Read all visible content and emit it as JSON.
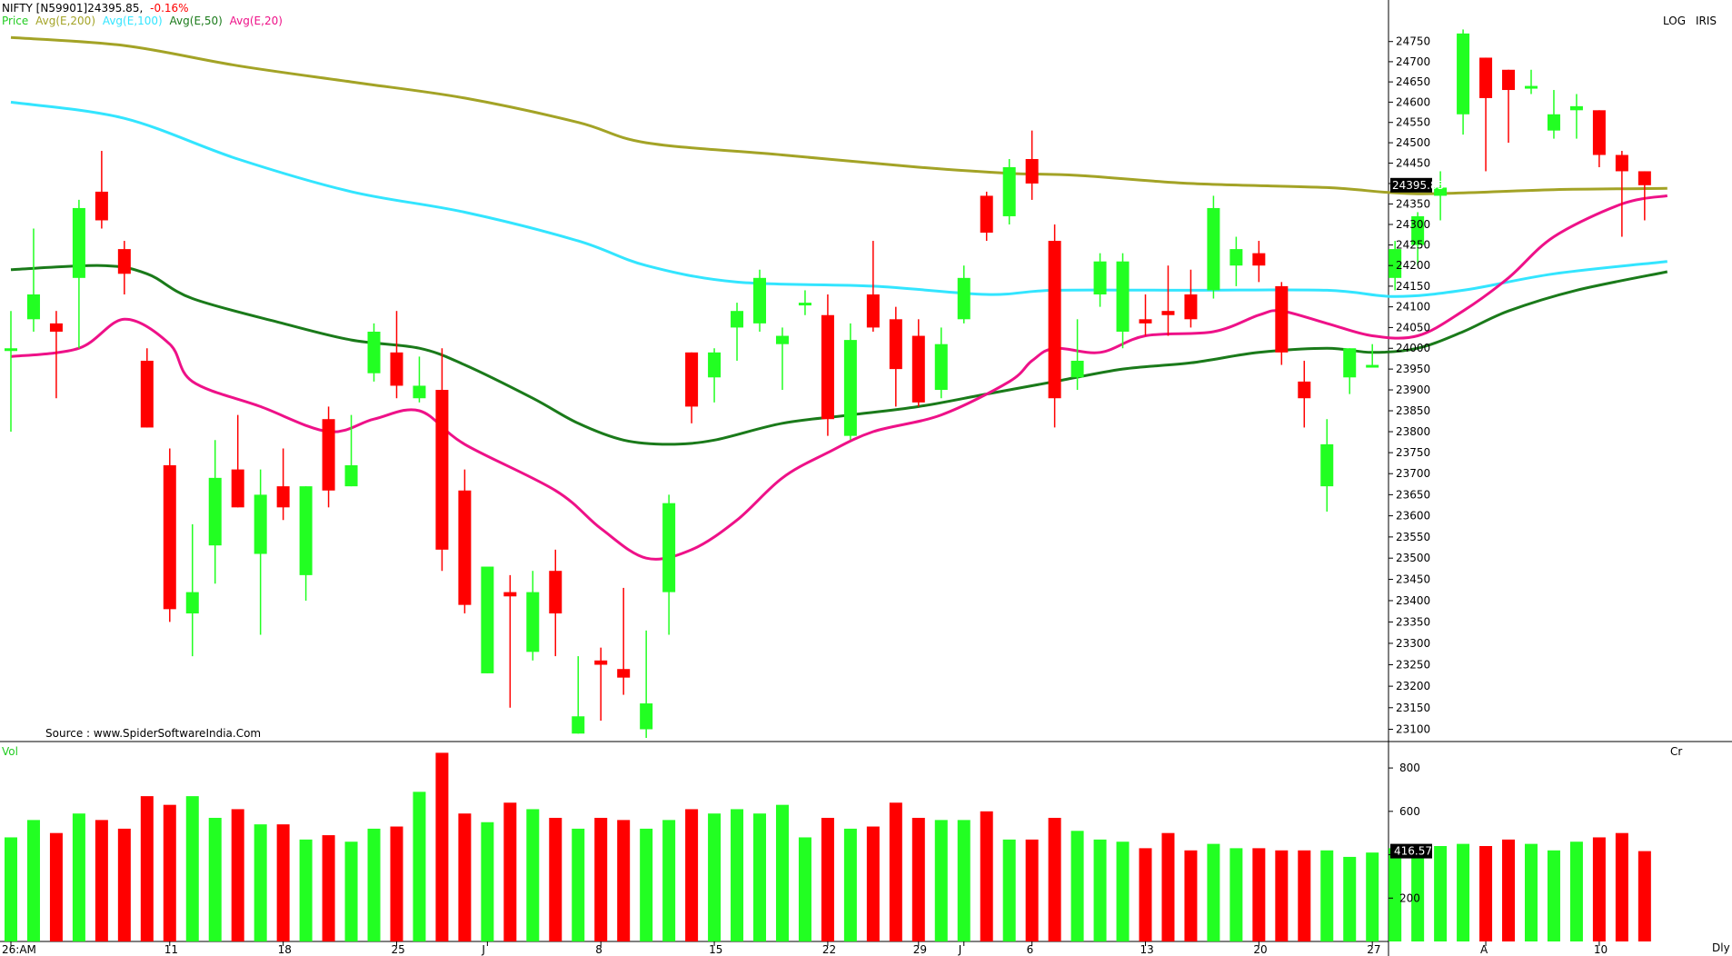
{
  "header": {
    "symbol": "NIFTY [N59901]24395.85,",
    "change": "-0.16%",
    "legend": [
      {
        "label": "Price",
        "color": "#22cc22"
      },
      {
        "label": "Avg(E,200)",
        "color": "#a3a326"
      },
      {
        "label": "Avg(E,100)",
        "color": "#33e5ff"
      },
      {
        "label": "Avg(E,50)",
        "color": "#1a7a1a"
      },
      {
        "label": "Avg(E,20)",
        "color": "#ee1188"
      }
    ],
    "scale_mode": "LOG",
    "scale_name": "IRIS",
    "source": "Source : www.SpiderSoftwareIndia.Com"
  },
  "volume_panel": {
    "label": "Vol",
    "unit": "Cr",
    "last_value": "416.57"
  },
  "price_panel": {
    "last_value": "24395.85"
  },
  "colors": {
    "up": "#22ff22",
    "down": "#ff0000",
    "up_vol": "#22ff22",
    "down_vol": "#ff0000"
  },
  "x_labels": [
    {
      "i": 0,
      "text": "26:AM"
    },
    {
      "i": 7,
      "text": "11"
    },
    {
      "i": 12,
      "text": "18"
    },
    {
      "i": 17,
      "text": "25"
    },
    {
      "i": 21,
      "text": "J"
    },
    {
      "i": 26,
      "text": "8"
    },
    {
      "i": 31,
      "text": "15"
    },
    {
      "i": 36,
      "text": "22"
    },
    {
      "i": 40,
      "text": "29"
    },
    {
      "i": 42,
      "text": "J"
    },
    {
      "i": 45,
      "text": "6"
    },
    {
      "i": 50,
      "text": "13"
    },
    {
      "i": 55,
      "text": "20"
    },
    {
      "i": 60,
      "text": "27"
    },
    {
      "i": 65,
      "text": "A"
    },
    {
      "i": 70,
      "text": "10"
    }
  ],
  "x_corner_label": "Dly",
  "chart_data": {
    "type": "candlestick",
    "scale": "log",
    "price_ylim": [
      23080,
      24790
    ],
    "price_ticks": [
      23100,
      23150,
      23200,
      23250,
      23300,
      23350,
      23400,
      23450,
      23500,
      23550,
      23600,
      23650,
      23700,
      23750,
      23800,
      23850,
      23900,
      23950,
      24000,
      24050,
      24100,
      24150,
      24200,
      24250,
      24300,
      24350,
      24400,
      24450,
      24500,
      24550,
      24600,
      24650,
      24700,
      24750
    ],
    "volume_ticks": [
      200,
      400,
      600,
      800
    ],
    "volume_ylim": [
      0,
      880
    ],
    "candles": [
      {
        "o": 24000,
        "h": 24090,
        "l": 23800,
        "c": 24000,
        "v": 480
      },
      {
        "o": 24070,
        "h": 24290,
        "l": 24040,
        "c": 24130,
        "v": 560
      },
      {
        "o": 24060,
        "h": 24090,
        "l": 23880,
        "c": 24040,
        "v": 500
      },
      {
        "o": 24170,
        "h": 24360,
        "l": 24000,
        "c": 24340,
        "v": 590
      },
      {
        "o": 24380,
        "h": 24480,
        "l": 24290,
        "c": 24310,
        "v": 560
      },
      {
        "o": 24240,
        "h": 24260,
        "l": 24130,
        "c": 24180,
        "v": 520
      },
      {
        "o": 23970,
        "h": 24000,
        "l": 23810,
        "c": 23810,
        "v": 670
      },
      {
        "o": 23720,
        "h": 23760,
        "l": 23350,
        "c": 23380,
        "v": 630
      },
      {
        "o": 23370,
        "h": 23580,
        "l": 23270,
        "c": 23420,
        "v": 670
      },
      {
        "o": 23530,
        "h": 23780,
        "l": 23440,
        "c": 23690,
        "v": 570
      },
      {
        "o": 23710,
        "h": 23840,
        "l": 23620,
        "c": 23620,
        "v": 610
      },
      {
        "o": 23510,
        "h": 23710,
        "l": 23320,
        "c": 23650,
        "v": 540
      },
      {
        "o": 23670,
        "h": 23760,
        "l": 23590,
        "c": 23620,
        "v": 540
      },
      {
        "o": 23460,
        "h": 23670,
        "l": 23400,
        "c": 23670,
        "v": 470
      },
      {
        "o": 23830,
        "h": 23860,
        "l": 23620,
        "c": 23660,
        "v": 490
      },
      {
        "o": 23670,
        "h": 23840,
        "l": 23670,
        "c": 23720,
        "v": 460
      },
      {
        "o": 23940,
        "h": 24060,
        "l": 23920,
        "c": 24040,
        "v": 520
      },
      {
        "o": 23990,
        "h": 24090,
        "l": 23880,
        "c": 23910,
        "v": 530
      },
      {
        "o": 23880,
        "h": 23980,
        "l": 23870,
        "c": 23910,
        "v": 690
      },
      {
        "o": 23900,
        "h": 24000,
        "l": 23470,
        "c": 23520,
        "v": 870
      },
      {
        "o": 23660,
        "h": 23710,
        "l": 23370,
        "c": 23390,
        "v": 590
      },
      {
        "o": 23230,
        "h": 23470,
        "l": 23230,
        "c": 23480,
        "v": 550
      },
      {
        "o": 23420,
        "h": 23460,
        "l": 23150,
        "c": 23410,
        "v": 640
      },
      {
        "o": 23280,
        "h": 23470,
        "l": 23260,
        "c": 23420,
        "v": 610
      },
      {
        "o": 23470,
        "h": 23520,
        "l": 23270,
        "c": 23370,
        "v": 570
      },
      {
        "o": 23090,
        "h": 23270,
        "l": 23090,
        "c": 23130,
        "v": 520
      },
      {
        "o": 23260,
        "h": 23290,
        "l": 23120,
        "c": 23250,
        "v": 570
      },
      {
        "o": 23240,
        "h": 23430,
        "l": 23180,
        "c": 23220,
        "v": 560
      },
      {
        "o": 23100,
        "h": 23330,
        "l": 23080,
        "c": 23160,
        "v": 520
      },
      {
        "o": 23420,
        "h": 23650,
        "l": 23320,
        "c": 23630,
        "v": 560
      },
      {
        "o": 23990,
        "h": 23990,
        "l": 23820,
        "c": 23860,
        "v": 610
      },
      {
        "o": 23930,
        "h": 24000,
        "l": 23870,
        "c": 23990,
        "v": 590
      },
      {
        "o": 24050,
        "h": 24110,
        "l": 23970,
        "c": 24090,
        "v": 610
      },
      {
        "o": 24060,
        "h": 24190,
        "l": 24040,
        "c": 24170,
        "v": 590
      },
      {
        "o": 24010,
        "h": 24050,
        "l": 23900,
        "c": 24030,
        "v": 630
      },
      {
        "o": 24110,
        "h": 24140,
        "l": 24080,
        "c": 24110,
        "v": 480
      },
      {
        "o": 24080,
        "h": 24130,
        "l": 23790,
        "c": 23830,
        "v": 570
      },
      {
        "o": 23790,
        "h": 24060,
        "l": 23780,
        "c": 24020,
        "v": 520
      },
      {
        "o": 24130,
        "h": 24260,
        "l": 24040,
        "c": 24050,
        "v": 530
      },
      {
        "o": 24070,
        "h": 24100,
        "l": 23860,
        "c": 23950,
        "v": 640
      },
      {
        "o": 24030,
        "h": 24070,
        "l": 23860,
        "c": 23870,
        "v": 570
      },
      {
        "o": 23900,
        "h": 24050,
        "l": 23880,
        "c": 24010,
        "v": 560
      },
      {
        "o": 24070,
        "h": 24200,
        "l": 24060,
        "c": 24170,
        "v": 560
      },
      {
        "o": 24370,
        "h": 24380,
        "l": 24260,
        "c": 24280,
        "v": 600
      },
      {
        "o": 24320,
        "h": 24460,
        "l": 24300,
        "c": 24440,
        "v": 470
      },
      {
        "o": 24460,
        "h": 24530,
        "l": 24360,
        "c": 24400,
        "v": 470
      },
      {
        "o": 24260,
        "h": 24300,
        "l": 23810,
        "c": 23880,
        "v": 570
      },
      {
        "o": 23930,
        "h": 24070,
        "l": 23900,
        "c": 23970,
        "v": 510
      },
      {
        "o": 24130,
        "h": 24230,
        "l": 24100,
        "c": 24210,
        "v": 470
      },
      {
        "o": 24040,
        "h": 24230,
        "l": 24000,
        "c": 24210,
        "v": 460
      },
      {
        "o": 24070,
        "h": 24130,
        "l": 24030,
        "c": 24060,
        "v": 430
      },
      {
        "o": 24090,
        "h": 24200,
        "l": 24030,
        "c": 24080,
        "v": 500
      },
      {
        "o": 24130,
        "h": 24190,
        "l": 24050,
        "c": 24070,
        "v": 420
      },
      {
        "o": 24140,
        "h": 24370,
        "l": 24120,
        "c": 24340,
        "v": 450
      },
      {
        "o": 24200,
        "h": 24270,
        "l": 24150,
        "c": 24240,
        "v": 430
      },
      {
        "o": 24230,
        "h": 24260,
        "l": 24160,
        "c": 24200,
        "v": 430
      },
      {
        "o": 24150,
        "h": 24160,
        "l": 23960,
        "c": 23990,
        "v": 420
      },
      {
        "o": 23920,
        "h": 23970,
        "l": 23810,
        "c": 23880,
        "v": 420
      },
      {
        "o": 23670,
        "h": 23830,
        "l": 23610,
        "c": 23770,
        "v": 420
      },
      {
        "o": 23930,
        "h": 24000,
        "l": 23890,
        "c": 24000,
        "v": 390
      },
      {
        "o": 23960,
        "h": 24010,
        "l": 23960,
        "c": 23960,
        "v": 410
      },
      {
        "o": 24170,
        "h": 24260,
        "l": 24140,
        "c": 24240,
        "v": 430
      },
      {
        "o": 24250,
        "h": 24330,
        "l": 24200,
        "c": 24320,
        "v": 400
      },
      {
        "o": 24370,
        "h": 24430,
        "l": 24310,
        "c": 24390,
        "v": 440
      },
      {
        "o": 24570,
        "h": 24780,
        "l": 24520,
        "c": 24770,
        "v": 450
      },
      {
        "o": 24710,
        "h": 24710,
        "l": 24430,
        "c": 24610,
        "v": 440
      },
      {
        "o": 24680,
        "h": 24680,
        "l": 24500,
        "c": 24630,
        "v": 470
      },
      {
        "o": 24640,
        "h": 24680,
        "l": 24620,
        "c": 24640,
        "v": 450
      },
      {
        "o": 24530,
        "h": 24630,
        "l": 24510,
        "c": 24570,
        "v": 420
      },
      {
        "o": 24580,
        "h": 24620,
        "l": 24510,
        "c": 24590,
        "v": 460
      },
      {
        "o": 24580,
        "h": 24580,
        "l": 24440,
        "c": 24470,
        "v": 480
      },
      {
        "o": 24470,
        "h": 24480,
        "l": 24270,
        "c": 24430,
        "v": 500
      },
      {
        "o": 24430,
        "h": 24430,
        "l": 24310,
        "c": 24395.85,
        "v": 416.57
      }
    ],
    "moving_averages": [
      {
        "name": "Avg(E,200)",
        "color": "#a3a326",
        "anchors": [
          [
            0,
            24760
          ],
          [
            5,
            24740
          ],
          [
            10,
            24690
          ],
          [
            15,
            24650
          ],
          [
            20,
            24610
          ],
          [
            25,
            24550
          ],
          [
            28,
            24500
          ],
          [
            34,
            24470
          ],
          [
            40,
            24440
          ],
          [
            44,
            24425
          ],
          [
            47,
            24420
          ],
          [
            52,
            24400
          ],
          [
            58,
            24390
          ],
          [
            62,
            24375
          ],
          [
            68,
            24385
          ],
          [
            73,
            24388
          ]
        ]
      },
      {
        "name": "Avg(E,100)",
        "color": "#33e5ff",
        "anchors": [
          [
            0,
            24600
          ],
          [
            5,
            24560
          ],
          [
            10,
            24460
          ],
          [
            15,
            24380
          ],
          [
            20,
            24330
          ],
          [
            25,
            24260
          ],
          [
            28,
            24200
          ],
          [
            32,
            24160
          ],
          [
            38,
            24150
          ],
          [
            43,
            24130
          ],
          [
            46,
            24140
          ],
          [
            52,
            24140
          ],
          [
            58,
            24140
          ],
          [
            61,
            24125
          ],
          [
            64,
            24140
          ],
          [
            68,
            24180
          ],
          [
            73,
            24210
          ]
        ]
      },
      {
        "name": "Avg(E,50)",
        "color": "#1a7a1a",
        "anchors": [
          [
            0,
            24190
          ],
          [
            4,
            24200
          ],
          [
            6,
            24180
          ],
          [
            8,
            24120
          ],
          [
            12,
            24060
          ],
          [
            15,
            24020
          ],
          [
            18,
            24000
          ],
          [
            20,
            23960
          ],
          [
            23,
            23880
          ],
          [
            25,
            23820
          ],
          [
            27,
            23780
          ],
          [
            29,
            23770
          ],
          [
            31,
            23780
          ],
          [
            34,
            23820
          ],
          [
            37,
            23840
          ],
          [
            40,
            23860
          ],
          [
            43,
            23890
          ],
          [
            46,
            23920
          ],
          [
            49,
            23950
          ],
          [
            52,
            23965
          ],
          [
            55,
            23990
          ],
          [
            58,
            24000
          ],
          [
            60,
            23990
          ],
          [
            62,
            24000
          ],
          [
            64,
            24040
          ],
          [
            66,
            24090
          ],
          [
            69,
            24140
          ],
          [
            73,
            24185
          ]
        ]
      },
      {
        "name": "Avg(E,20)",
        "color": "#ee1188",
        "anchors": [
          [
            0,
            23980
          ],
          [
            3,
            24000
          ],
          [
            5,
            24070
          ],
          [
            7,
            24010
          ],
          [
            8,
            23920
          ],
          [
            11,
            23860
          ],
          [
            14,
            23800
          ],
          [
            16,
            23830
          ],
          [
            18,
            23850
          ],
          [
            20,
            23770
          ],
          [
            24,
            23660
          ],
          [
            26,
            23570
          ],
          [
            28,
            23500
          ],
          [
            30,
            23520
          ],
          [
            32,
            23590
          ],
          [
            34,
            23690
          ],
          [
            36,
            23750
          ],
          [
            38,
            23800
          ],
          [
            41,
            23840
          ],
          [
            44,
            23920
          ],
          [
            45,
            23970
          ],
          [
            46,
            24000
          ],
          [
            48,
            23990
          ],
          [
            50,
            24030
          ],
          [
            53,
            24040
          ],
          [
            55,
            24080
          ],
          [
            56,
            24090
          ],
          [
            58,
            24060
          ],
          [
            60,
            24030
          ],
          [
            62,
            24030
          ],
          [
            64,
            24090
          ],
          [
            66,
            24170
          ],
          [
            68,
            24270
          ],
          [
            71,
            24350
          ],
          [
            73,
            24370
          ]
        ]
      }
    ]
  }
}
